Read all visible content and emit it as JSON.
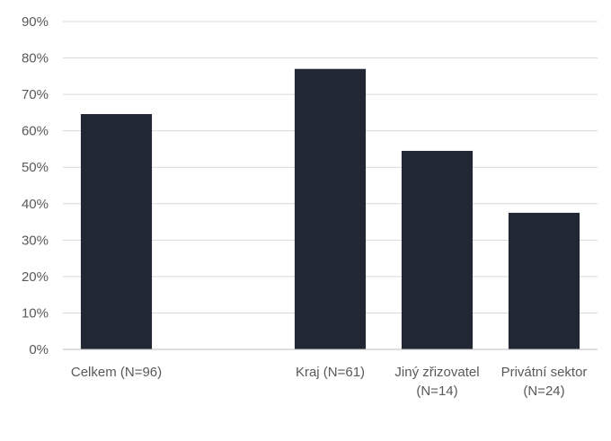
{
  "chart_data": {
    "type": "bar",
    "categories": [
      [
        "Celkem (N=96)"
      ],
      [],
      [
        "Kraj (N=61)"
      ],
      [
        "Jiný zřizovatel",
        "(N=14)"
      ],
      [
        "Privátní sektor",
        "(N=24)"
      ]
    ],
    "values": [
      64.6,
      null,
      77.0,
      54.5,
      37.5
    ],
    "y_ticks": [
      "0%",
      "10%",
      "20%",
      "30%",
      "40%",
      "50%",
      "60%",
      "70%",
      "80%",
      "90%"
    ],
    "ylim": [
      0,
      90
    ],
    "grid": true,
    "legend": "none",
    "bar_color": "#222833",
    "grid_color": "#d9d9d9",
    "axis_color": "#bfbfbf"
  }
}
